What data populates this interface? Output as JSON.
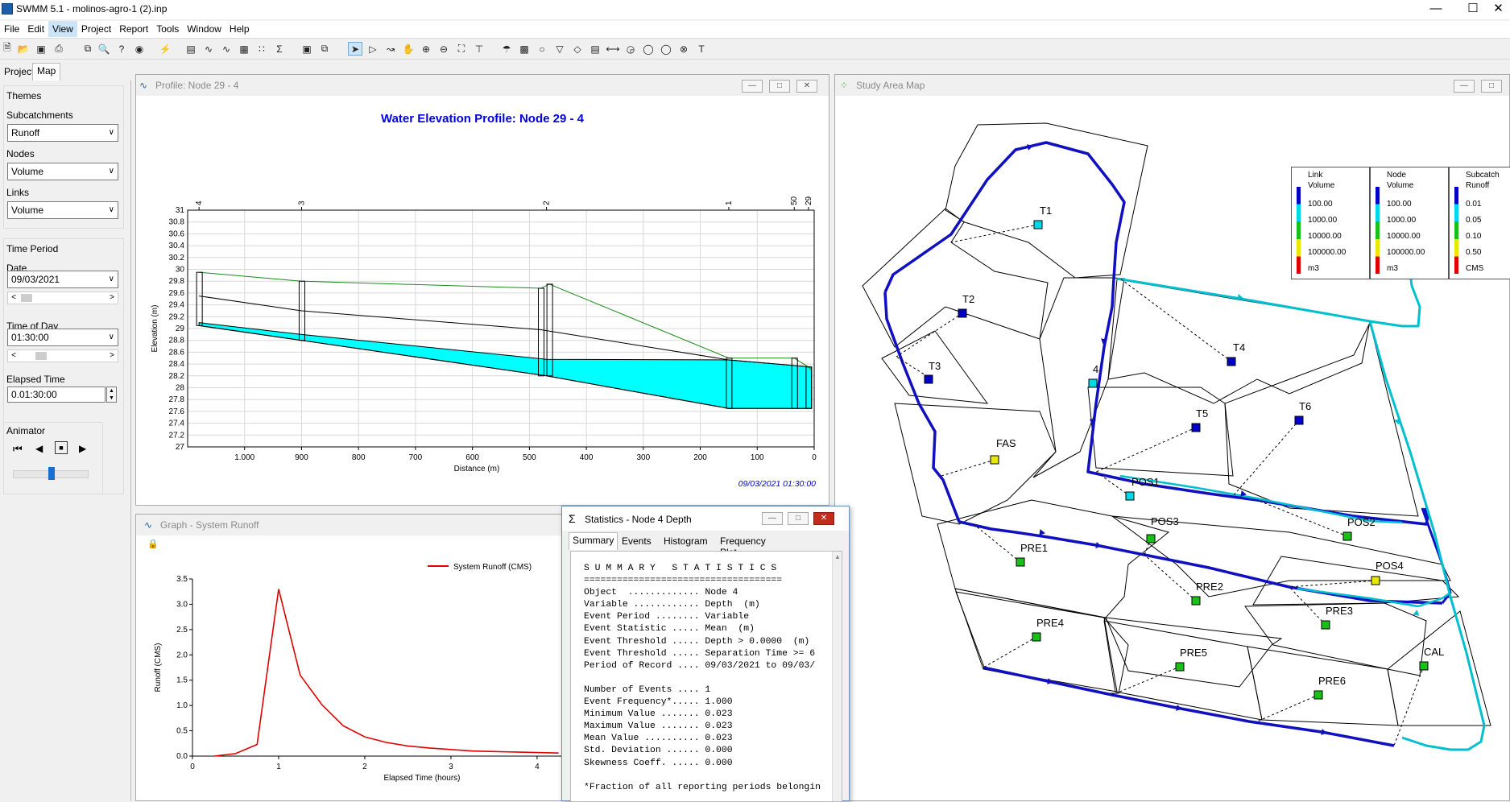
{
  "app": {
    "title": "SWMM 5.1 - molinos-agro-1 (2).inp"
  },
  "menu": [
    "File",
    "Edit",
    "View",
    "Project",
    "Report",
    "Tools",
    "Window",
    "Help"
  ],
  "left_tabs": [
    "Project",
    "Map"
  ],
  "themes": {
    "heading": "Themes",
    "subcatch_label": "Subcatchments",
    "subcatch_value": "Runoff",
    "nodes_label": "Nodes",
    "nodes_value": "Volume",
    "links_label": "Links",
    "links_value": "Volume"
  },
  "time_period": {
    "heading": "Time Period",
    "date_label": "Date",
    "date_value": "09/03/2021",
    "tod_label": "Time of Day",
    "tod_value": "01:30:00",
    "elapsed_label": "Elapsed Time",
    "elapsed_value": "0.01:30:00"
  },
  "animator": {
    "heading": "Animator"
  },
  "profile_window": {
    "title": "Profile: Node 29 - 4",
    "chart_title": "Water Elevation Profile: Node 29 - 4",
    "timestamp": "09/03/2021 01:30:00"
  },
  "graph_window": {
    "title": "Graph - System Runoff"
  },
  "map_window": {
    "title": "Study Area Map"
  },
  "map_labels": [
    "T1",
    "T2",
    "T3",
    "T4",
    "T5",
    "T6",
    "FAS",
    "4",
    "POS1",
    "POS2",
    "POS3",
    "POS4",
    "PRE1",
    "PRE2",
    "PRE3",
    "PRE4",
    "PRE5",
    "PRE6",
    "CAL"
  ],
  "map_legend": [
    {
      "title1": "Link",
      "title2": "Volume",
      "values": [
        "100.00",
        "1000.00",
        "10000.00",
        "100000.00"
      ],
      "unit": "m3"
    },
    {
      "title1": "Node",
      "title2": "Volume",
      "values": [
        "100.00",
        "1000.00",
        "10000.00",
        "100000.00"
      ],
      "unit": "m3"
    },
    {
      "title1": "Subcatch",
      "title2": "Runoff",
      "values": [
        "0.01",
        "0.05",
        "0.10",
        "0.50"
      ],
      "unit": "CMS"
    }
  ],
  "legend_colors": [
    "#0000c8",
    "#00d8e8",
    "#18c018",
    "#e8e800",
    "#e00000"
  ],
  "stats_window": {
    "title": "Statistics - Node 4 Depth",
    "tabs": [
      "Summary",
      "Events",
      "Histogram",
      "Frequency Plot"
    ],
    "report": "S U M M A R Y   S T A T I S T I C S\n====================================\nObject  ............. Node 4\nVariable ............ Depth  (m)\nEvent Period ........ Variable\nEvent Statistic ..... Mean  (m)\nEvent Threshold ..... Depth > 0.0000  (m)\nEvent Threshold ..... Separation Time >= 6\nPeriod of Record .... 09/03/2021 to 09/03/\n\nNumber of Events .... 1\nEvent Frequency*..... 1.000\nMinimum Value ....... 0.023\nMaximum Value ....... 0.023\nMean Value .......... 0.023\nStd. Deviation ...... 0.000\nSkewness Coeff. ..... 0.000\n\n*Fraction of all reporting periods belongin"
  },
  "chart_data": [
    {
      "type": "area",
      "title": "Water Elevation Profile: Node 29 - 4",
      "xlabel": "Distance (m)",
      "ylabel": "Elevation (m)",
      "xlim": [
        1100,
        0
      ],
      "ylim": [
        27,
        31
      ],
      "x_ticks": [
        "1.000",
        "900",
        "800",
        "700",
        "600",
        "500",
        "400",
        "300",
        "200",
        "100",
        "0"
      ],
      "y_ticks": [
        "27",
        "27.2",
        "27.4",
        "27.6",
        "27.8",
        "28",
        "28.2",
        "28.4",
        "28.6",
        "28.8",
        "29",
        "29.2",
        "29.4",
        "29.6",
        "29.8",
        "30",
        "30.2",
        "30.4",
        "30.6",
        "30.8",
        "31"
      ],
      "node_labels": [
        {
          "name": "4",
          "x": 1080
        },
        {
          "name": "3",
          "x": 900
        },
        {
          "name": "2",
          "x": 470
        },
        {
          "name": "1",
          "x": 150
        },
        {
          "name": "50",
          "x": 35
        },
        {
          "name": "29",
          "x": 10
        }
      ],
      "ground_x": [
        1080,
        900,
        480,
        465,
        150,
        35,
        10,
        5
      ],
      "ground_y": [
        29.95,
        29.8,
        29.68,
        29.75,
        28.5,
        28.5,
        28.35,
        28.3
      ],
      "crown_x": [
        1080,
        900,
        480,
        150,
        5
      ],
      "crown_y": [
        29.55,
        29.3,
        28.98,
        28.47,
        28.35
      ],
      "invert_x": [
        1080,
        900,
        470,
        150,
        5
      ],
      "invert_y": [
        29.05,
        28.8,
        28.2,
        27.65,
        27.65
      ],
      "water_x": [
        1080,
        900,
        470,
        150,
        5
      ],
      "water_y": [
        29.1,
        28.9,
        28.48,
        28.47,
        28.35
      ],
      "grid": true
    },
    {
      "type": "line",
      "title": "",
      "xlabel": "Elapsed Time (hours)",
      "ylabel": "Runoff (CMS)",
      "xlim": [
        0,
        4.3
      ],
      "ylim": [
        0,
        3.5
      ],
      "x_ticks": [
        "0",
        "1",
        "2",
        "3",
        "4"
      ],
      "y_ticks": [
        "0.0",
        "0.5",
        "1.0",
        "1.5",
        "2.0",
        "2.5",
        "3.0",
        "3.5"
      ],
      "series": [
        {
          "name": "System Runoff (CMS)",
          "color": "#e00000",
          "x": [
            0.25,
            0.5,
            0.75,
            1.0,
            1.25,
            1.5,
            1.75,
            2.0,
            2.25,
            2.5,
            2.75,
            3.0,
            3.25,
            3.5,
            3.75,
            4.0,
            4.25
          ],
          "y": [
            0.0,
            0.05,
            0.23,
            3.3,
            1.6,
            1.02,
            0.6,
            0.38,
            0.27,
            0.2,
            0.16,
            0.13,
            0.1,
            0.09,
            0.08,
            0.07,
            0.06
          ]
        }
      ],
      "grid": false
    }
  ]
}
